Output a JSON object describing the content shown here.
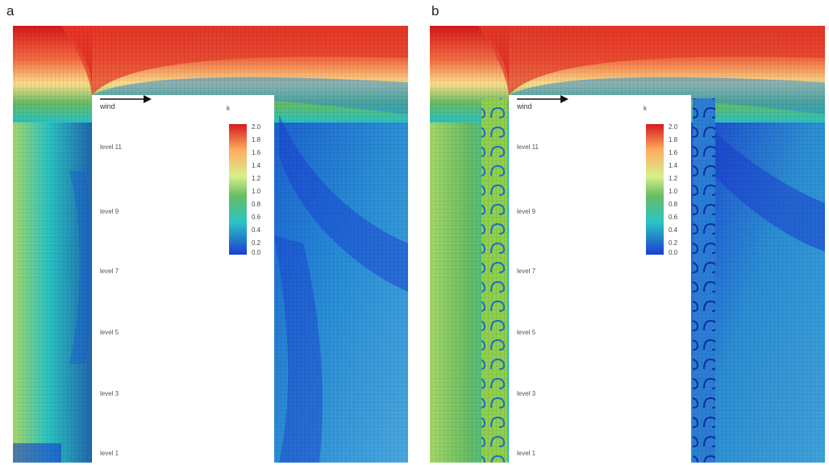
{
  "panels": [
    {
      "letter": "a",
      "wind_label": "wind",
      "levels": [
        "level 11",
        "level 9",
        "level 7",
        "level 5",
        "level 3",
        "level 1"
      ],
      "colorbar": {
        "title": "k",
        "ticks": [
          "2.0",
          "1.8",
          "1.6",
          "1.4",
          "1.2",
          "1.0",
          "0.8",
          "0.6",
          "0.4",
          "0.2",
          "0.0"
        ]
      },
      "balconies": false
    },
    {
      "letter": "b",
      "wind_label": "wind",
      "levels": [
        "level 11",
        "level 9",
        "level 7",
        "level 5",
        "level 3",
        "level 1"
      ],
      "colorbar": {
        "title": "k",
        "ticks": [
          "2.0",
          "1.8",
          "1.6",
          "1.4",
          "1.2",
          "1.0",
          "0.8",
          "0.6",
          "0.4",
          "0.2",
          "0.0"
        ]
      },
      "balconies": true
    }
  ],
  "colors": {
    "high": "#d7191c",
    "mid_high": "#fdae61",
    "mid": "#a6d96a",
    "mid_low": "#2bc4c4",
    "low": "#1a3fd1"
  }
}
